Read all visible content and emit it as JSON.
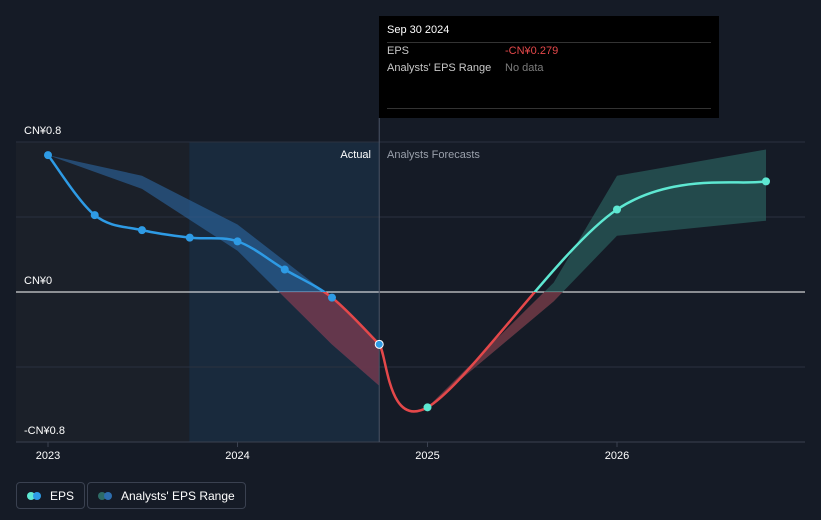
{
  "tooltip": {
    "date": "Sep 30 2024",
    "eps_label": "EPS",
    "eps_value": "-CN¥0.279",
    "range_label": "Analysts' EPS Range",
    "range_value": "No data"
  },
  "legend": {
    "eps_label": "EPS",
    "range_label": "Analysts' EPS Range"
  },
  "colors": {
    "background": "#151b26",
    "actual_line": "#2e9be5",
    "negative_line": "#e4484a",
    "forecast_line": "#5ee8d2",
    "actual_band": "#2d6dad",
    "forecast_band": "#2d6b66",
    "negative_band": "#7a2f3e"
  },
  "chart_data": {
    "type": "line",
    "region_labels": {
      "actual": "Actual",
      "forecast": "Analysts Forecasts"
    },
    "y_tick_labels": [
      "CN¥0.8",
      "CN¥0",
      "-CN¥0.8"
    ],
    "ylim": [
      -0.8,
      0.8
    ],
    "x_tick_labels": [
      "2023",
      "2024",
      "2025",
      "2026"
    ],
    "xlim": [
      "2023-01-01",
      "2026-10-15"
    ],
    "highlight_range": [
      "2023-09-30",
      "2024-09-30"
    ],
    "actual_forecast_split": "2024-09-30",
    "series": [
      {
        "name": "EPS",
        "points": [
          {
            "x": "2023-01-01",
            "y": 0.73
          },
          {
            "x": "2023-04-01",
            "y": 0.41
          },
          {
            "x": "2023-07-01",
            "y": 0.33
          },
          {
            "x": "2023-10-01",
            "y": 0.29
          },
          {
            "x": "2024-01-01",
            "y": 0.27
          },
          {
            "x": "2024-04-01",
            "y": 0.12
          },
          {
            "x": "2024-07-01",
            "y": -0.03
          },
          {
            "x": "2024-09-30",
            "y": -0.279
          }
        ]
      },
      {
        "name": "EPS Forecast",
        "points": [
          {
            "x": "2024-09-30",
            "y": -0.279
          },
          {
            "x": "2025-01-01",
            "y": -0.615
          },
          {
            "x": "2026-01-01",
            "y": 0.44
          },
          {
            "x": "2026-10-15",
            "y": 0.59
          }
        ]
      }
    ],
    "ranges": [
      {
        "name": "Analysts' EPS Range (past)",
        "x": [
          "2023-01-01",
          "2023-07-01",
          "2024-01-01",
          "2024-07-01",
          "2024-09-30"
        ],
        "upper": [
          0.73,
          0.62,
          0.36,
          -0.03,
          -0.279
        ],
        "lower": [
          0.73,
          0.55,
          0.22,
          -0.28,
          -0.5
        ]
      },
      {
        "name": "Analysts' EPS Range (forecast)",
        "x": [
          "2025-01-01",
          "2025-09-01",
          "2026-01-01",
          "2026-10-15"
        ],
        "upper": [
          -0.615,
          0.05,
          0.62,
          0.76
        ],
        "lower": [
          -0.615,
          -0.05,
          0.3,
          0.38
        ]
      }
    ]
  }
}
